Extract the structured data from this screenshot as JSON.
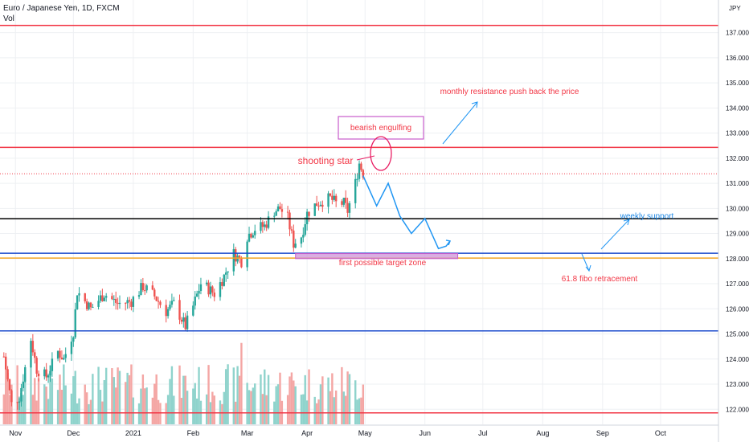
{
  "header": {
    "title": "Euro / Japanese Yen, 1D, FXCM",
    "vol_label": "Vol",
    "currency": "JPY"
  },
  "chart_data": {
    "type": "candlestick",
    "ylim": [
      121.4,
      138.3
    ],
    "y_ticks": [
      122,
      123,
      124,
      125,
      126,
      127,
      128,
      129,
      130,
      131,
      132,
      133,
      134,
      135,
      136,
      137
    ],
    "y_tick_labels": [
      "122.000",
      "123.000",
      "124.000",
      "125.000",
      "126.000",
      "127.000",
      "128.000",
      "129.000",
      "130.000",
      "131.000",
      "132.000",
      "133.000",
      "134.000",
      "135.000",
      "136.000",
      "137.000"
    ],
    "x_labels": [
      {
        "label": "Nov",
        "date": "2020-11-01"
      },
      {
        "label": "Dec",
        "date": "2020-12-01"
      },
      {
        "label": "2021",
        "date": "2021-01-01"
      },
      {
        "label": "Feb",
        "date": "2021-02-01"
      },
      {
        "label": "Mar",
        "date": "2021-03-01"
      },
      {
        "label": "Apr",
        "date": "2021-04-01"
      },
      {
        "label": "May",
        "date": "2021-05-01"
      },
      {
        "label": "Jun",
        "date": "2021-06-01"
      },
      {
        "label": "Jul",
        "date": "2021-07-01"
      },
      {
        "label": "Aug",
        "date": "2021-08-01"
      },
      {
        "label": "Sep",
        "date": "2021-09-01"
      },
      {
        "label": "Oct",
        "date": "2021-10-01"
      }
    ],
    "price_path": [
      {
        "date": "2020-10-26",
        "close": 124.1
      },
      {
        "date": "2020-10-30",
        "close": 122.2
      },
      {
        "date": "2020-11-03",
        "close": 122.5
      },
      {
        "date": "2020-11-09",
        "close": 124.8
      },
      {
        "date": "2020-11-12",
        "close": 123.6
      },
      {
        "date": "2020-11-17",
        "close": 123.3
      },
      {
        "date": "2020-11-23",
        "close": 124.3
      },
      {
        "date": "2020-11-26",
        "close": 124.0
      },
      {
        "date": "2020-12-01",
        "close": 125.1
      },
      {
        "date": "2020-12-03",
        "close": 126.7
      },
      {
        "date": "2020-12-10",
        "close": 126.0
      },
      {
        "date": "2020-12-17",
        "close": 126.6
      },
      {
        "date": "2020-12-24",
        "close": 126.2
      },
      {
        "date": "2020-12-31",
        "close": 126.3
      },
      {
        "date": "2021-01-06",
        "close": 126.9
      },
      {
        "date": "2021-01-12",
        "close": 126.5
      },
      {
        "date": "2021-01-18",
        "close": 125.9
      },
      {
        "date": "2021-01-22",
        "close": 126.2
      },
      {
        "date": "2021-01-28",
        "close": 125.3
      },
      {
        "date": "2021-02-01",
        "close": 126.1
      },
      {
        "date": "2021-02-05",
        "close": 127.0
      },
      {
        "date": "2021-02-09",
        "close": 126.8
      },
      {
        "date": "2021-02-12",
        "close": 126.6
      },
      {
        "date": "2021-02-17",
        "close": 127.3
      },
      {
        "date": "2021-02-22",
        "close": 128.2
      },
      {
        "date": "2021-02-26",
        "close": 127.9
      },
      {
        "date": "2021-03-01",
        "close": 128.9
      },
      {
        "date": "2021-03-05",
        "close": 129.2
      },
      {
        "date": "2021-03-10",
        "close": 129.3
      },
      {
        "date": "2021-03-15",
        "close": 129.9
      },
      {
        "date": "2021-03-18",
        "close": 130.0
      },
      {
        "date": "2021-03-22",
        "close": 129.6
      },
      {
        "date": "2021-03-25",
        "close": 128.6
      },
      {
        "date": "2021-03-29",
        "close": 128.9
      },
      {
        "date": "2021-04-01",
        "close": 129.8
      },
      {
        "date": "2021-04-06",
        "close": 130.2
      },
      {
        "date": "2021-04-09",
        "close": 130.3
      },
      {
        "date": "2021-04-13",
        "close": 130.4
      },
      {
        "date": "2021-04-16",
        "close": 130.2
      },
      {
        "date": "2021-04-20",
        "close": 130.2
      },
      {
        "date": "2021-04-22",
        "close": 129.9
      },
      {
        "date": "2021-04-26",
        "close": 131.0
      },
      {
        "date": "2021-04-28",
        "close": 131.8
      },
      {
        "date": "2021-04-30",
        "close": 131.4
      }
    ],
    "horizontal_levels": [
      {
        "value": 137.286,
        "label": "137.286",
        "color": "#f23645"
      },
      {
        "value": 132.431,
        "label": "132.431",
        "color": "#f23645"
      },
      {
        "value": 131.378,
        "label": "131.378",
        "color": "#f23645",
        "dashed": true
      },
      {
        "value": 129.59,
        "label": "129.590",
        "color": "#000000"
      },
      {
        "value": 128.212,
        "label": "128.212",
        "color": "#1848cc"
      },
      {
        "value": 128.02,
        "label": "128.020",
        "color": "#f5a623"
      },
      {
        "value": 125.12,
        "label": "125.120",
        "color": "#1848cc"
      },
      {
        "value": 121.856,
        "label": "121.856",
        "color": "#f23645"
      }
    ],
    "projection_path": [
      {
        "date": "2021-04-30",
        "price": 131.3
      },
      {
        "date": "2021-05-07",
        "price": 130.1
      },
      {
        "date": "2021-05-13",
        "price": 131.0
      },
      {
        "date": "2021-05-19",
        "price": 129.7
      },
      {
        "date": "2021-05-25",
        "price": 129.0
      },
      {
        "date": "2021-06-01",
        "price": 129.6
      },
      {
        "date": "2021-06-08",
        "price": 128.4
      },
      {
        "date": "2021-06-12",
        "price": 128.5
      },
      {
        "date": "2021-06-14",
        "price": 128.7
      }
    ],
    "target_zone": {
      "label": "first possible target zone",
      "from": "2021-03-26",
      "to": "2021-06-18",
      "low": 128.0,
      "high": 128.2
    },
    "annotations": [
      {
        "text": "monthly resistance push back the price",
        "color": "#f23645"
      },
      {
        "text": "bearish engulfing",
        "color": "#f23645"
      },
      {
        "text": "shooting star",
        "color": "#f23645"
      },
      {
        "text": "weekly support",
        "color": "#1e88e5"
      },
      {
        "text": "first possible target zone",
        "color": "#f23645"
      },
      {
        "text": "61.8 fibo retracement",
        "color": "#f23645"
      }
    ],
    "colors": {
      "up": "#26a69a",
      "down": "#ef5350",
      "vol_up": "#8fd3cc",
      "vol_down": "#f4a6a4",
      "grid": "#eef0f3",
      "annotation_blue": "#2196f3",
      "box": "#c85ccc"
    }
  }
}
